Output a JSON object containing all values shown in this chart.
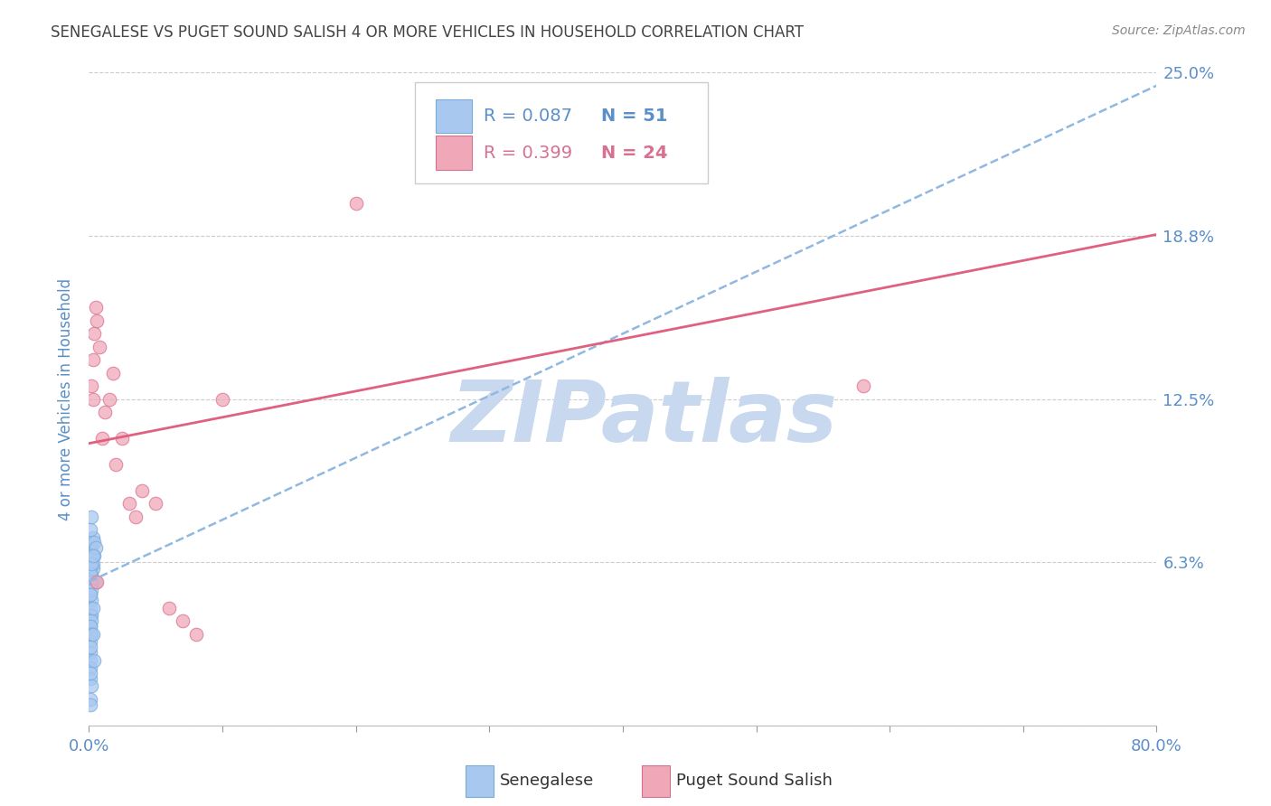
{
  "title": "SENEGALESE VS PUGET SOUND SALISH 4 OR MORE VEHICLES IN HOUSEHOLD CORRELATION CHART",
  "source": "Source: ZipAtlas.com",
  "ylabel": "4 or more Vehicles in Household",
  "xlim": [
    0.0,
    0.8
  ],
  "ylim": [
    0.0,
    0.25
  ],
  "xticks": [
    0.0,
    0.1,
    0.2,
    0.3,
    0.4,
    0.5,
    0.6,
    0.7,
    0.8
  ],
  "ytick_vals": [
    0.0,
    0.0625,
    0.125,
    0.1875,
    0.25
  ],
  "ytick_labels": [
    "",
    "6.3%",
    "12.5%",
    "18.8%",
    "25.0%"
  ],
  "grid_color": "#cccccc",
  "background_color": "#ffffff",
  "watermark": "ZIPatlas",
  "watermark_color": "#c8d8ee",
  "senegalese_color": "#a8c8f0",
  "senegalese_edge": "#7aaad8",
  "puget_color": "#f0a8b8",
  "puget_edge": "#d87090",
  "trend_blue_color": "#90b8e0",
  "trend_pink_color": "#e06080",
  "R_senegalese": 0.087,
  "N_senegalese": 51,
  "R_puget": 0.399,
  "N_puget": 24,
  "tick_label_color": "#5a8fc8",
  "ylabel_color": "#5a8fc8",
  "title_color": "#444444",
  "senegalese_x": [
    0.001,
    0.001,
    0.001,
    0.001,
    0.001,
    0.001,
    0.002,
    0.002,
    0.002,
    0.002,
    0.002,
    0.002,
    0.003,
    0.003,
    0.003,
    0.003,
    0.004,
    0.004,
    0.005,
    0.005,
    0.001,
    0.001,
    0.002,
    0.002,
    0.001,
    0.001,
    0.001,
    0.002,
    0.003,
    0.001,
    0.001,
    0.002,
    0.001,
    0.002,
    0.001,
    0.001,
    0.003,
    0.001,
    0.002,
    0.001,
    0.001,
    0.001,
    0.002,
    0.001,
    0.001,
    0.001,
    0.002,
    0.001,
    0.003,
    0.001,
    0.004
  ],
  "senegalese_y": [
    0.055,
    0.06,
    0.065,
    0.07,
    0.06,
    0.058,
    0.062,
    0.068,
    0.055,
    0.07,
    0.058,
    0.065,
    0.06,
    0.055,
    0.072,
    0.062,
    0.065,
    0.07,
    0.068,
    0.055,
    0.05,
    0.055,
    0.048,
    0.052,
    0.045,
    0.05,
    0.058,
    0.062,
    0.065,
    0.042,
    0.038,
    0.042,
    0.035,
    0.04,
    0.032,
    0.038,
    0.045,
    0.028,
    0.035,
    0.025,
    0.022,
    0.018,
    0.015,
    0.01,
    0.008,
    0.075,
    0.08,
    0.03,
    0.035,
    0.02,
    0.025
  ],
  "puget_x": [
    0.002,
    0.003,
    0.004,
    0.005,
    0.006,
    0.008,
    0.01,
    0.012,
    0.015,
    0.018,
    0.02,
    0.025,
    0.03,
    0.035,
    0.04,
    0.05,
    0.06,
    0.07,
    0.08,
    0.1,
    0.2,
    0.58,
    0.003,
    0.006
  ],
  "puget_y": [
    0.13,
    0.14,
    0.15,
    0.16,
    0.155,
    0.145,
    0.11,
    0.12,
    0.125,
    0.135,
    0.1,
    0.11,
    0.085,
    0.08,
    0.09,
    0.085,
    0.045,
    0.04,
    0.035,
    0.125,
    0.2,
    0.13,
    0.125,
    0.055
  ],
  "trend_blue_x0": 0.0,
  "trend_blue_y0": 0.055,
  "trend_blue_x1": 0.8,
  "trend_blue_y1": 0.245,
  "trend_pink_x0": 0.0,
  "trend_pink_y0": 0.108,
  "trend_pink_x1": 0.8,
  "trend_pink_y1": 0.188
}
